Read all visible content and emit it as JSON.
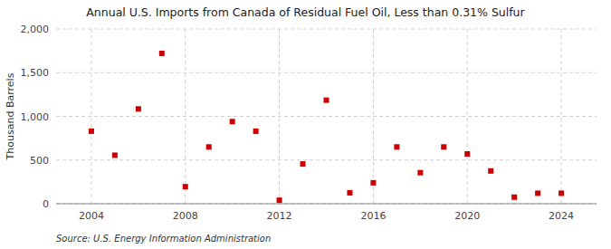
{
  "chart_data": {
    "type": "scatter",
    "title": "Annual U.S. Imports from Canada of Residual Fuel Oil, Less than 0.31% Sulfur",
    "ylabel": "Thousand Barrels",
    "source": "Source: U.S. Energy Information Administration",
    "x": [
      2004,
      2005,
      2006,
      2007,
      2008,
      2009,
      2010,
      2011,
      2012,
      2013,
      2014,
      2015,
      2016,
      2017,
      2018,
      2019,
      2020,
      2021,
      2022,
      2023,
      2024
    ],
    "values": [
      830,
      555,
      1085,
      1720,
      195,
      650,
      940,
      830,
      40,
      455,
      1185,
      125,
      240,
      650,
      355,
      650,
      570,
      375,
      75,
      120,
      120
    ],
    "color": "#cc0000",
    "marker": "square",
    "xlim": [
      2002.5,
      2025.5
    ],
    "xticks": [
      2004,
      2008,
      2012,
      2016,
      2020,
      2024
    ],
    "ylim": [
      0,
      2000
    ],
    "yticks": [
      0,
      500,
      {
        "value": 1000,
        "label": "1,000"
      },
      {
        "value": 1500,
        "label": "1,500"
      },
      {
        "value": 2000,
        "label": "2,000"
      }
    ],
    "grid": true
  }
}
